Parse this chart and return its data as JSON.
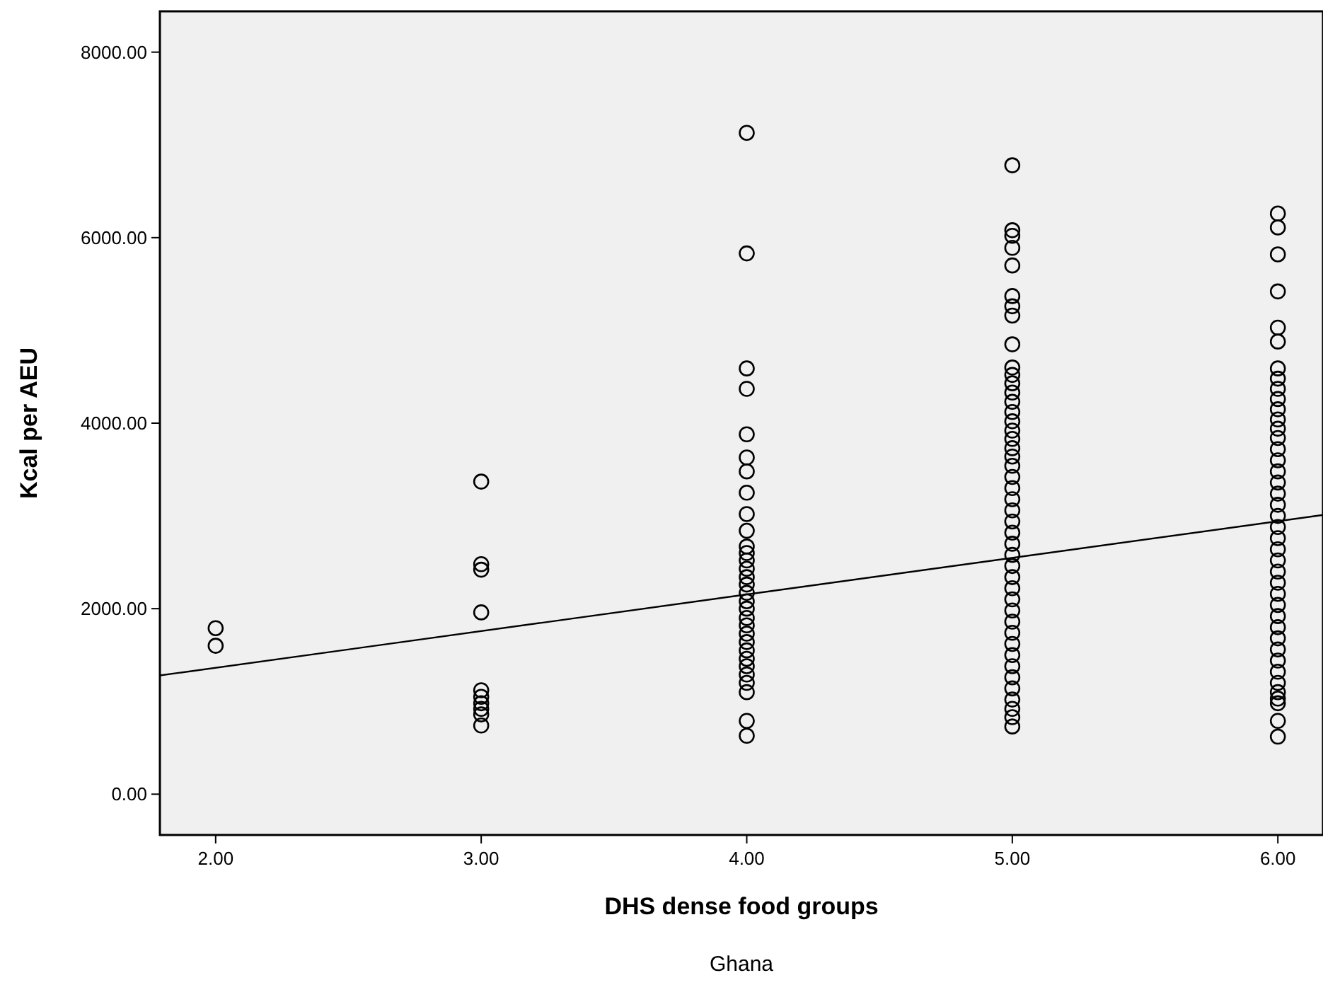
{
  "chart_data": {
    "type": "scatter",
    "xlabel": "DHS dense food groups",
    "ylabel": "Kcal per AEU",
    "annotations": [
      "Ghana"
    ],
    "xlim": [
      1.79,
      6.17
    ],
    "ylim": [
      -440,
      8440
    ],
    "xticks": [
      {
        "value": 2,
        "label": "2.00"
      },
      {
        "value": 3,
        "label": "3.00"
      },
      {
        "value": 4,
        "label": "4.00"
      },
      {
        "value": 5,
        "label": "5.00"
      },
      {
        "value": 6,
        "label": "6.00"
      }
    ],
    "yticks": [
      {
        "value": 0,
        "label": "0.00"
      },
      {
        "value": 2000,
        "label": "2000.00"
      },
      {
        "value": 4000,
        "label": "4000.00"
      },
      {
        "value": 6000,
        "label": "6000.00"
      },
      {
        "value": 8000,
        "label": "8000.00"
      }
    ],
    "grid": false,
    "marker": "circle",
    "series": [
      {
        "color": "#000000",
        "x": [
          2,
          2,
          3,
          3,
          3,
          3,
          3,
          3,
          3,
          3,
          3,
          3,
          4,
          4,
          4,
          4,
          4,
          4,
          4,
          4,
          4,
          4,
          4,
          4,
          4,
          4,
          4,
          4,
          4,
          4,
          4,
          4,
          4,
          4,
          4,
          4,
          4,
          4,
          4,
          4,
          4,
          4,
          4,
          5,
          5,
          5,
          5,
          5,
          5,
          5,
          5,
          5,
          5,
          5,
          5,
          5,
          5,
          5,
          5,
          5,
          5,
          5,
          5,
          5,
          5,
          5,
          5,
          5,
          5,
          5,
          5,
          5,
          5,
          5,
          5,
          5,
          5,
          5,
          5,
          5,
          5,
          5,
          5,
          5,
          5,
          5,
          5,
          5,
          6,
          6,
          6,
          6,
          6,
          6,
          6,
          6,
          6,
          6,
          6,
          6,
          6,
          6,
          6,
          6,
          6,
          6,
          6,
          6,
          6,
          6,
          6,
          6,
          6,
          6,
          6,
          6,
          6,
          6,
          6,
          6,
          6,
          6,
          6,
          6,
          6,
          6,
          6,
          6,
          6
        ],
        "values": [
          1790,
          1600,
          3370,
          2480,
          2420,
          1960,
          1120,
          1050,
          980,
          920,
          860,
          740,
          7130,
          5830,
          4590,
          4370,
          3880,
          3630,
          3480,
          3250,
          3020,
          2840,
          2670,
          2600,
          2520,
          2430,
          2340,
          2260,
          2170,
          2080,
          2000,
          1900,
          1820,
          1730,
          1640,
          1550,
          1460,
          1380,
          1290,
          1200,
          1100,
          790,
          630,
          6780,
          6080,
          6020,
          5890,
          5700,
          5370,
          5260,
          5160,
          4850,
          4600,
          4520,
          4430,
          4330,
          4230,
          4120,
          4020,
          3920,
          3830,
          3730,
          3640,
          3540,
          3420,
          3300,
          3180,
          3060,
          2940,
          2820,
          2700,
          2580,
          2460,
          2340,
          2220,
          2100,
          1980,
          1860,
          1740,
          1620,
          1500,
          1380,
          1260,
          1140,
          1020,
          920,
          830,
          730,
          6260,
          6110,
          5820,
          5420,
          5030,
          4880,
          4590,
          4480,
          4370,
          4260,
          4150,
          4040,
          3940,
          3840,
          3720,
          3600,
          3480,
          3360,
          3240,
          3120,
          3000,
          2880,
          2760,
          2640,
          2520,
          2400,
          2280,
          2160,
          2040,
          1920,
          1800,
          1680,
          1560,
          1440,
          1320,
          1200,
          1100,
          1030,
          980,
          790,
          620
        ]
      },
      {
        "type": "line",
        "color": "#000000",
        "marker": "none",
        "x": [
          1.79,
          6.17
        ],
        "values": [
          1280,
          3010
        ]
      }
    ]
  }
}
